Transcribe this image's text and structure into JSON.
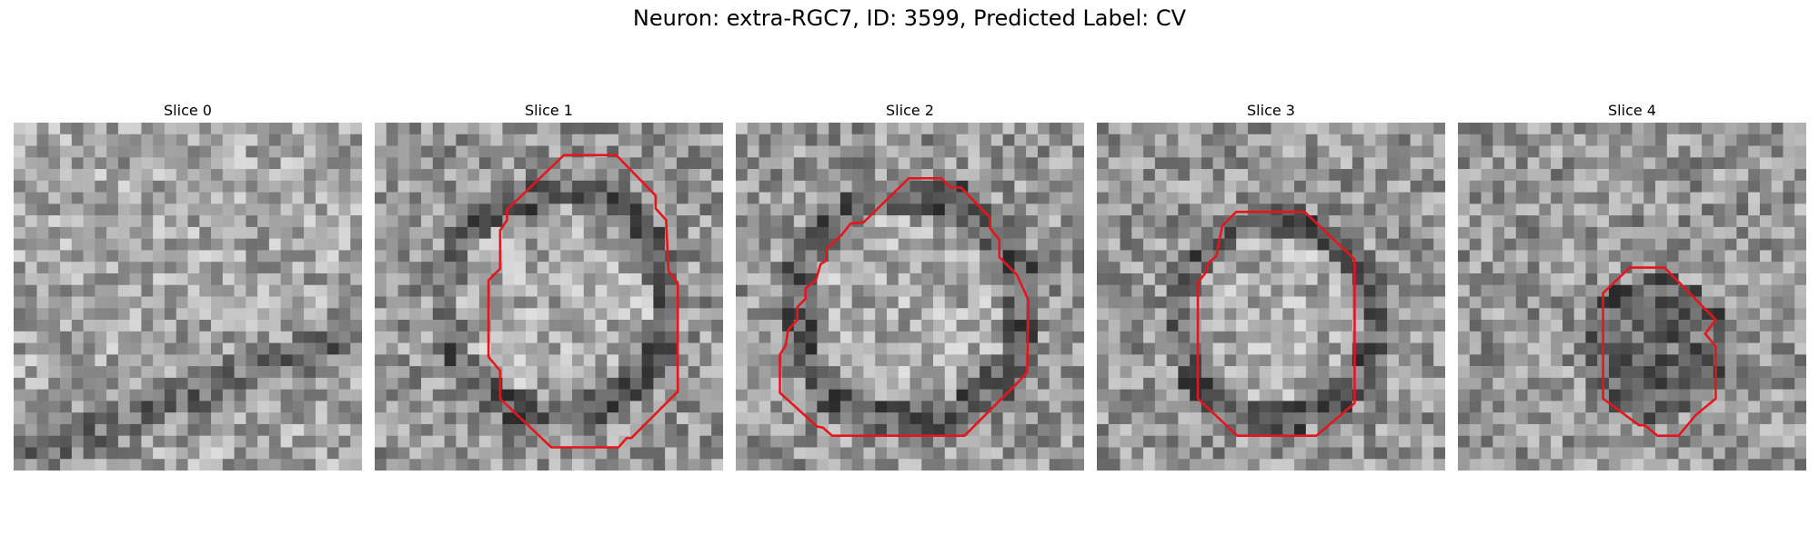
{
  "figure": {
    "title": "Neuron: extra-RGC7, ID: 3599, Predicted Label: CV",
    "contour_color": "#e8141c",
    "image_colormap": "gray"
  },
  "panels": [
    {
      "label": "Slice 0"
    },
    {
      "label": "Slice 1"
    },
    {
      "label": "Slice 2"
    },
    {
      "label": "Slice 3"
    },
    {
      "label": "Slice 4"
    }
  ]
}
